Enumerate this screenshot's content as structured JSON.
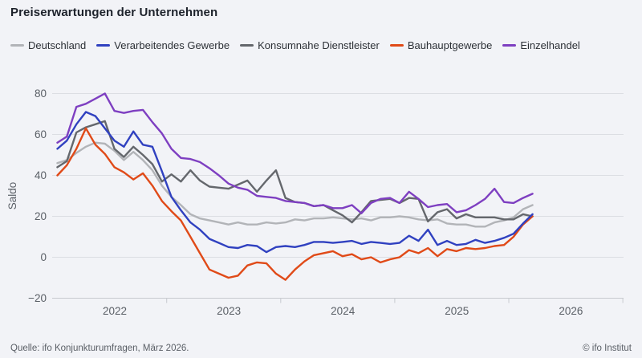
{
  "header": {
    "title": "Preiserwartungen der Unternehmen"
  },
  "legend": {
    "items": [
      {
        "label": "Deutschland",
        "color": "#b2b4b8"
      },
      {
        "label": "Verarbeitendes Gewerbe",
        "color": "#3041c0"
      },
      {
        "label": "Konsumnahe Dienstleister",
        "color": "#64676c"
      },
      {
        "label": "Bauhauptgewerbe",
        "color": "#e04a18"
      },
      {
        "label": "Einzelhandel",
        "color": "#7e3fc1"
      }
    ]
  },
  "footer": {
    "source": "Quelle: ifo Konjunkturumfragen,  März 2026.",
    "copyright": "© ifo Institut"
  },
  "chart_data": {
    "type": "line",
    "title": "Preiserwartungen der Unternehmen",
    "xlabel": "",
    "ylabel": "Saldo",
    "ylim": [
      -20,
      80
    ],
    "yticks": [
      80,
      60,
      40,
      20,
      0,
      -20
    ],
    "xticks": [
      "2022",
      "2023",
      "2024",
      "2025",
      "2026"
    ],
    "grid": true,
    "legend_position": "top",
    "x_frequency": "monthly",
    "x_months": [
      "2022-01",
      "2022-02",
      "2022-03",
      "2022-04",
      "2022-05",
      "2022-06",
      "2022-07",
      "2022-08",
      "2022-09",
      "2022-10",
      "2022-11",
      "2022-12",
      "2023-01",
      "2023-02",
      "2023-03",
      "2023-04",
      "2023-05",
      "2023-06",
      "2023-07",
      "2023-08",
      "2023-09",
      "2023-10",
      "2023-11",
      "2023-12",
      "2024-01",
      "2024-02",
      "2024-03",
      "2024-04",
      "2024-05",
      "2024-06",
      "2024-07",
      "2024-08",
      "2024-09",
      "2024-10",
      "2024-11",
      "2024-12",
      "2025-01",
      "2025-02",
      "2025-03",
      "2025-04",
      "2025-05",
      "2025-06",
      "2025-07",
      "2025-08",
      "2025-09",
      "2025-10",
      "2025-11",
      "2025-12",
      "2026-01",
      "2026-02",
      "2026-03"
    ],
    "series": [
      {
        "name": "Deutschland",
        "color": "#b2b4b8",
        "values": [
          46,
          47.5,
          51,
          54,
          56,
          55.5,
          52,
          47.5,
          51.5,
          47.5,
          42.5,
          35,
          29.5,
          25.5,
          21,
          19,
          18,
          17,
          16,
          17,
          16,
          16,
          17,
          16.5,
          17,
          18.5,
          18,
          19,
          19,
          19.5,
          19,
          18.5,
          19,
          18,
          19.5,
          19.5,
          20,
          19.5,
          18.5,
          18,
          18.5,
          16.5,
          16,
          16,
          15,
          15,
          17,
          18,
          19.5,
          23.5,
          25.5
        ]
      },
      {
        "name": "Konsumnahe Dienstleister",
        "color": "#64676c",
        "values": [
          44,
          47,
          61,
          63.5,
          65,
          66.5,
          53,
          49,
          54,
          50,
          45.5,
          37,
          40.5,
          37,
          42.5,
          37.5,
          34.5,
          34,
          33.5,
          35.5,
          37.5,
          32,
          37.5,
          42.5,
          29,
          27,
          26.5,
          25,
          25.5,
          23,
          20.5,
          17,
          22,
          27.5,
          28,
          28.5,
          26.5,
          29,
          28.5,
          17.5,
          22,
          23.5,
          19,
          21,
          19.5,
          19.5,
          19.5,
          18.5,
          18.5,
          21,
          20
        ]
      },
      {
        "name": "Bauhauptgewerbe",
        "color": "#e04a18",
        "values": [
          40,
          45,
          53,
          63,
          55,
          50.5,
          44,
          41.5,
          38,
          41,
          35,
          27.5,
          22.5,
          18,
          10,
          2,
          -6,
          -8,
          -10,
          -9,
          -4,
          -2.5,
          -3,
          -8,
          -11,
          -6,
          -2,
          1,
          2,
          3,
          0.5,
          1.5,
          -1,
          0,
          -2.5,
          -1,
          0,
          3.5,
          2,
          4.5,
          0.5,
          4,
          3,
          4.5,
          4,
          4.5,
          5.5,
          6,
          10,
          16,
          20
        ]
      },
      {
        "name": "Verarbeitendes Gewerbe",
        "color": "#3041c0",
        "values": [
          53,
          57,
          65,
          71,
          69,
          63,
          57,
          54,
          61.5,
          55,
          54,
          42,
          29.5,
          23,
          17,
          13.5,
          9,
          7,
          5,
          4.5,
          6,
          5.5,
          2.5,
          5,
          5.5,
          5,
          6,
          7.5,
          7.5,
          7,
          7.5,
          8,
          6.5,
          7.5,
          7,
          6.5,
          7,
          10.5,
          8,
          13.5,
          6,
          8,
          6,
          6.5,
          8.5,
          7,
          8,
          9.5,
          11.5,
          16.5,
          21
        ]
      },
      {
        "name": "Einzelhandel",
        "color": "#7e3fc1",
        "values": [
          56,
          59,
          73.5,
          75,
          77.5,
          80,
          71.5,
          70.5,
          71.5,
          72,
          66,
          60.5,
          53,
          48.5,
          48,
          46.5,
          43.5,
          40,
          36,
          34,
          33,
          30,
          29.5,
          29,
          27.5,
          27,
          26.5,
          25,
          25.5,
          24,
          24,
          25.5,
          21.5,
          26.5,
          28.5,
          29,
          26.5,
          32,
          28.5,
          24.5,
          25.5,
          26,
          22,
          23,
          25.5,
          28.5,
          33.5,
          27,
          26.5,
          29,
          31
        ]
      }
    ]
  }
}
